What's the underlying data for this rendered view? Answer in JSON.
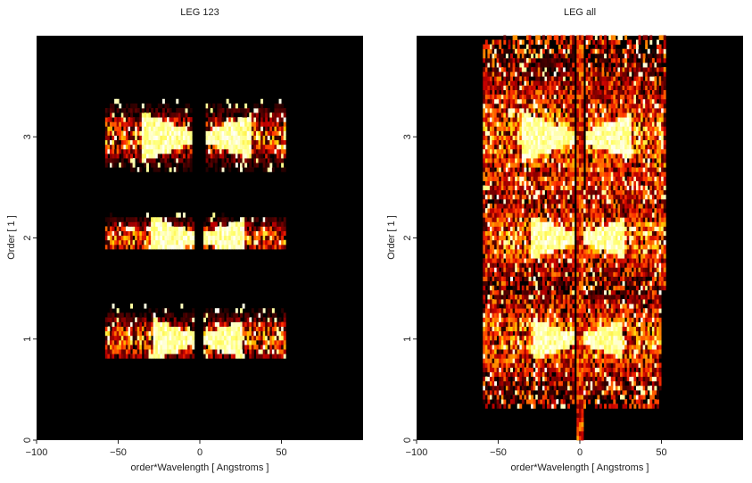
{
  "chart_data": [
    {
      "type": "heatmap",
      "title": "LEG 123",
      "xlabel": "order*Wavelength [ Angstroms ]",
      "ylabel": "Order [ 1 ]",
      "xlim": [
        -100,
        100
      ],
      "ylim": [
        0,
        4
      ],
      "xticks": [
        -100,
        -50,
        0,
        50
      ],
      "yticks": [
        0,
        1,
        2,
        3
      ],
      "colormap": "heat (black-red-orange-yellow-white)",
      "background_color": "#000000",
      "bands": [
        {
          "order": 1,
          "y_range": [
            0.82,
            1.33
          ],
          "x_range": [
            -58,
            52
          ],
          "gap": [
            -3,
            2
          ],
          "hot_core": [
            -28,
            26
          ]
        },
        {
          "order": 2,
          "y_range": [
            1.88,
            2.25
          ],
          "x_range": [
            -58,
            52
          ],
          "gap": [
            -3,
            2
          ],
          "hot_core": [
            -30,
            28
          ]
        },
        {
          "order": 3,
          "y_range": [
            2.66,
            3.38
          ],
          "x_range": [
            -58,
            52
          ],
          "gap": [
            -5,
            4
          ],
          "hot_core": [
            -35,
            32
          ]
        }
      ]
    },
    {
      "type": "heatmap",
      "title": "LEG all",
      "xlabel": "order*Wavelength [ Angstroms ]",
      "ylabel": "Order [ 1 ]",
      "xlim": [
        -100,
        100
      ],
      "ylim": [
        0,
        4
      ],
      "xticks": [
        -100,
        -50,
        0,
        50
      ],
      "yticks": [
        0,
        1,
        2,
        3
      ],
      "colormap": "heat (black-red-orange-yellow-white)",
      "background_color": "#000000",
      "bands": [
        {
          "order": 1,
          "y_range": [
            0.3,
            1.5
          ],
          "x_range": [
            -60,
            50
          ],
          "gap": [
            -3,
            2
          ],
          "hot_core": [
            -28,
            26
          ]
        },
        {
          "order": 2,
          "y_range": [
            1.5,
            2.6
          ],
          "x_range": [
            -60,
            52
          ],
          "gap": [
            -3,
            2
          ],
          "hot_core": [
            -30,
            28
          ]
        },
        {
          "order": 3,
          "y_range": [
            2.4,
            4.0
          ],
          "x_range": [
            -60,
            52
          ],
          "gap": [
            -4,
            3
          ],
          "hot_core": [
            -35,
            32
          ]
        }
      ]
    }
  ]
}
